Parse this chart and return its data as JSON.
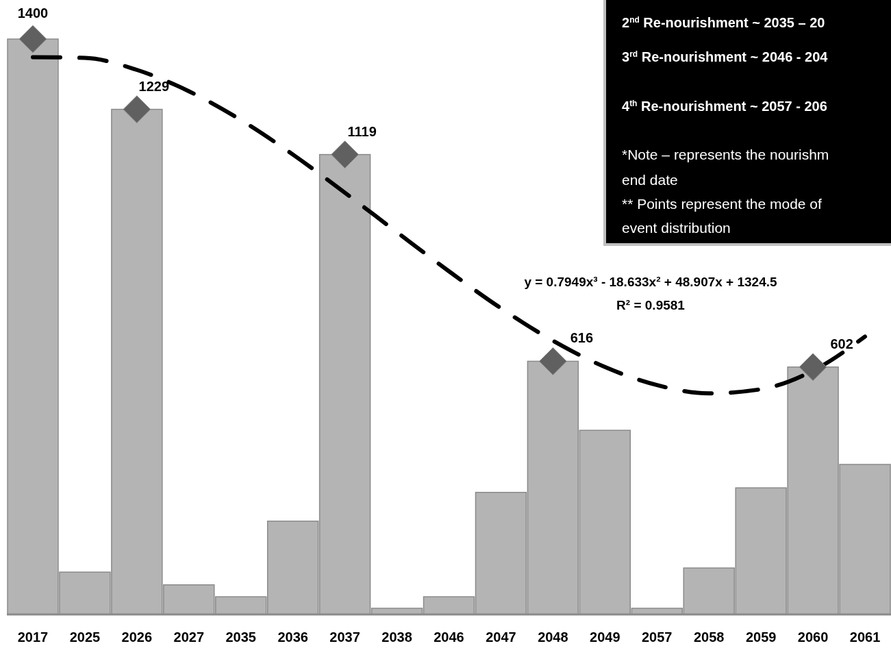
{
  "chart_data": {
    "type": "bar",
    "categories": [
      "2017",
      "2025",
      "2026",
      "2027",
      "2035",
      "2036",
      "2037",
      "2038",
      "2046",
      "2047",
      "2048",
      "2049",
      "2057",
      "2058",
      "2059",
      "2060",
      "2061"
    ],
    "series": [
      {
        "color": "#b4b4b4",
        "values": [
          1400,
          103,
          1229,
          72,
          43,
          227,
          1119,
          15,
          43,
          297,
          616,
          448,
          15,
          113,
          308,
          602,
          365
        ],
        "value_labels": [
          "1400",
          null,
          "1229",
          null,
          null,
          null,
          "1119",
          null,
          null,
          null,
          "616",
          null,
          null,
          null,
          null,
          "602",
          null
        ]
      },
      {
        "type": "scatter",
        "color": "#606060",
        "marker": "diamond",
        "values": [
          1400,
          null,
          1229,
          null,
          null,
          null,
          1119,
          null,
          null,
          null,
          616,
          null,
          null,
          null,
          null,
          602,
          null
        ]
      },
      {
        "type": "line",
        "color": "#000000",
        "line_style": "dashed",
        "marker": "none",
        "values": [
          1356,
          1354,
          1325,
          1273,
          1203,
          1119,
          1026,
          930,
          835,
          745,
          666,
          602,
          558,
          538,
          548,
          593,
          676
        ]
      }
    ],
    "annotations": [
      "2$^{nd}$ Re-nourishment ~ 2035 – 20",
      "3$^{rd}$ Re-nourishment ~ 2046 - 204",
      "4$^{th}$ Re-nourishment ~ 2057 - 206",
      "*Note – represents the nourishm",
      "end date",
      "** Points represent the mode of",
      "event distribution",
      "y = 0.7949x³ - 18.633x² + 48.907x + 1324.5",
      "R² = 0.9581"
    ]
  }
}
